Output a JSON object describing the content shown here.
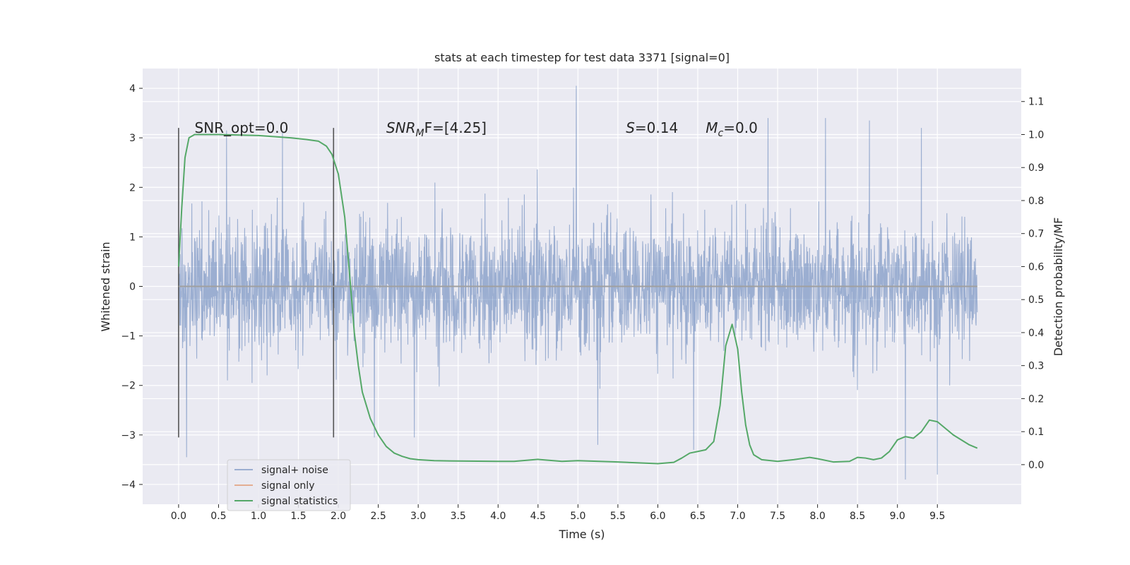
{
  "chart_data": {
    "type": "line",
    "title": "stats at each timestep for test data 3371 [signal=0]",
    "xlabel": "Time (s)",
    "ylabel": "Whitened strain",
    "y2label": "Detection probability/MF",
    "xlim": [
      -0.45,
      10.55
    ],
    "ylim": [
      -4.4,
      4.4
    ],
    "y2lim": [
      -0.12,
      1.2
    ],
    "x_ticks": [
      0.0,
      0.5,
      1.0,
      1.5,
      2.0,
      2.5,
      3.0,
      3.5,
      4.0,
      4.5,
      5.0,
      5.5,
      6.0,
      6.5,
      7.0,
      7.5,
      8.0,
      8.5,
      9.0,
      9.5
    ],
    "x_tick_labels": [
      "0.0",
      "0.5",
      "1.0",
      "1.5",
      "2.0",
      "2.5",
      "3.0",
      "3.5",
      "4.0",
      "4.5",
      "5.0",
      "5.5",
      "6.0",
      "6.5",
      "7.0",
      "7.5",
      "8.0",
      "8.5",
      "9.0",
      "9.5"
    ],
    "y_ticks": [
      -4,
      -3,
      -2,
      -1,
      0,
      1,
      2,
      3,
      4
    ],
    "y_tick_labels": [
      "−4",
      "−3",
      "−2",
      "−1",
      "0",
      "1",
      "2",
      "3",
      "4"
    ],
    "y2_ticks": [
      0.0,
      0.1,
      0.2,
      0.3,
      0.4,
      0.5,
      0.6,
      0.7,
      0.8,
      0.9,
      1.0,
      1.1
    ],
    "y2_tick_labels": [
      "0.0",
      "0.1",
      "0.2",
      "0.3",
      "0.4",
      "0.5",
      "0.6",
      "0.7",
      "0.8",
      "0.9",
      "1.0",
      "1.1"
    ],
    "grid": true,
    "legend_placement": "lower-left",
    "noise": {
      "x_range": [
        0.0,
        10.0
      ],
      "typical_amplitude": [
        1.3,
        2.0
      ],
      "peaks": [
        {
          "x": 0.1,
          "y": -3.45
        },
        {
          "x": 0.6,
          "y": 3.15
        },
        {
          "x": 1.3,
          "y": 3.1
        },
        {
          "x": 2.45,
          "y": -3.05
        },
        {
          "x": 2.95,
          "y": -3.05
        },
        {
          "x": 4.98,
          "y": 4.05
        },
        {
          "x": 5.25,
          "y": -3.2
        },
        {
          "x": 6.45,
          "y": -3.3
        },
        {
          "x": 7.38,
          "y": 3.4
        },
        {
          "x": 8.1,
          "y": 3.4
        },
        {
          "x": 8.65,
          "y": 3.35
        },
        {
          "x": 9.1,
          "y": -3.9
        },
        {
          "x": 9.5,
          "y": -3.8
        },
        {
          "x": 9.3,
          "y": 3.2
        }
      ]
    },
    "window_markers": {
      "x": [
        0.0,
        1.94
      ],
      "y_range": [
        -3.05,
        3.2
      ]
    },
    "series": [
      {
        "name": "signal+ noise",
        "color": "#4c72b0",
        "axis": "left",
        "kind": "noise"
      },
      {
        "name": "signal only",
        "color": "#dd8452",
        "axis": "left",
        "kind": "flat",
        "x": [
          0.0,
          10.0
        ],
        "values": [
          0.0,
          0.0
        ]
      },
      {
        "name": "signal statistics",
        "color": "#55a868",
        "axis": "right",
        "x": [
          0.0,
          0.04,
          0.08,
          0.13,
          0.2,
          0.3,
          0.5,
          1.0,
          1.4,
          1.6,
          1.75,
          1.85,
          1.92,
          2.0,
          2.08,
          2.15,
          2.2,
          2.25,
          2.3,
          2.4,
          2.5,
          2.6,
          2.7,
          2.8,
          2.9,
          3.0,
          3.2,
          3.5,
          4.0,
          4.2,
          4.5,
          4.8,
          5.0,
          5.5,
          6.0,
          6.2,
          6.3,
          6.4,
          6.5,
          6.6,
          6.7,
          6.78,
          6.85,
          6.93,
          7.0,
          7.05,
          7.1,
          7.15,
          7.2,
          7.3,
          7.5,
          7.7,
          7.9,
          8.0,
          8.2,
          8.4,
          8.5,
          8.6,
          8.7,
          8.8,
          8.9,
          9.0,
          9.1,
          9.2,
          9.3,
          9.4,
          9.5,
          9.6,
          9.7,
          9.8,
          9.9,
          10.0
        ],
        "values": [
          0.6,
          0.78,
          0.93,
          0.99,
          1.0,
          1.0,
          1.0,
          0.997,
          0.99,
          0.985,
          0.98,
          0.965,
          0.94,
          0.88,
          0.75,
          0.55,
          0.4,
          0.3,
          0.22,
          0.14,
          0.09,
          0.055,
          0.035,
          0.025,
          0.018,
          0.015,
          0.012,
          0.011,
          0.01,
          0.01,
          0.016,
          0.01,
          0.012,
          0.008,
          0.003,
          0.007,
          0.02,
          0.035,
          0.04,
          0.045,
          0.07,
          0.18,
          0.36,
          0.425,
          0.35,
          0.22,
          0.12,
          0.06,
          0.03,
          0.015,
          0.01,
          0.015,
          0.022,
          0.018,
          0.008,
          0.01,
          0.022,
          0.02,
          0.015,
          0.02,
          0.04,
          0.075,
          0.085,
          0.08,
          0.1,
          0.135,
          0.13,
          0.11,
          0.09,
          0.075,
          0.06,
          0.05
        ]
      }
    ],
    "annotations": [
      {
        "id": "snr-opt",
        "text": "SNR_opt=0.0",
        "x": 0.2,
        "y": 3.2
      },
      {
        "id": "snr-mf",
        "text_italic": "SNR",
        "text_sub": "M",
        "text_tail": "F=[4.25]",
        "x": 2.6,
        "y": 3.2
      },
      {
        "id": "s-stat",
        "text_italic": "S",
        "text_tail": "=0.14",
        "x": 5.6,
        "y": 3.2
      },
      {
        "id": "mc",
        "text_italic": "M",
        "text_sub": "c",
        "text_tail": "=0.0",
        "x": 6.6,
        "y": 3.2
      }
    ]
  }
}
